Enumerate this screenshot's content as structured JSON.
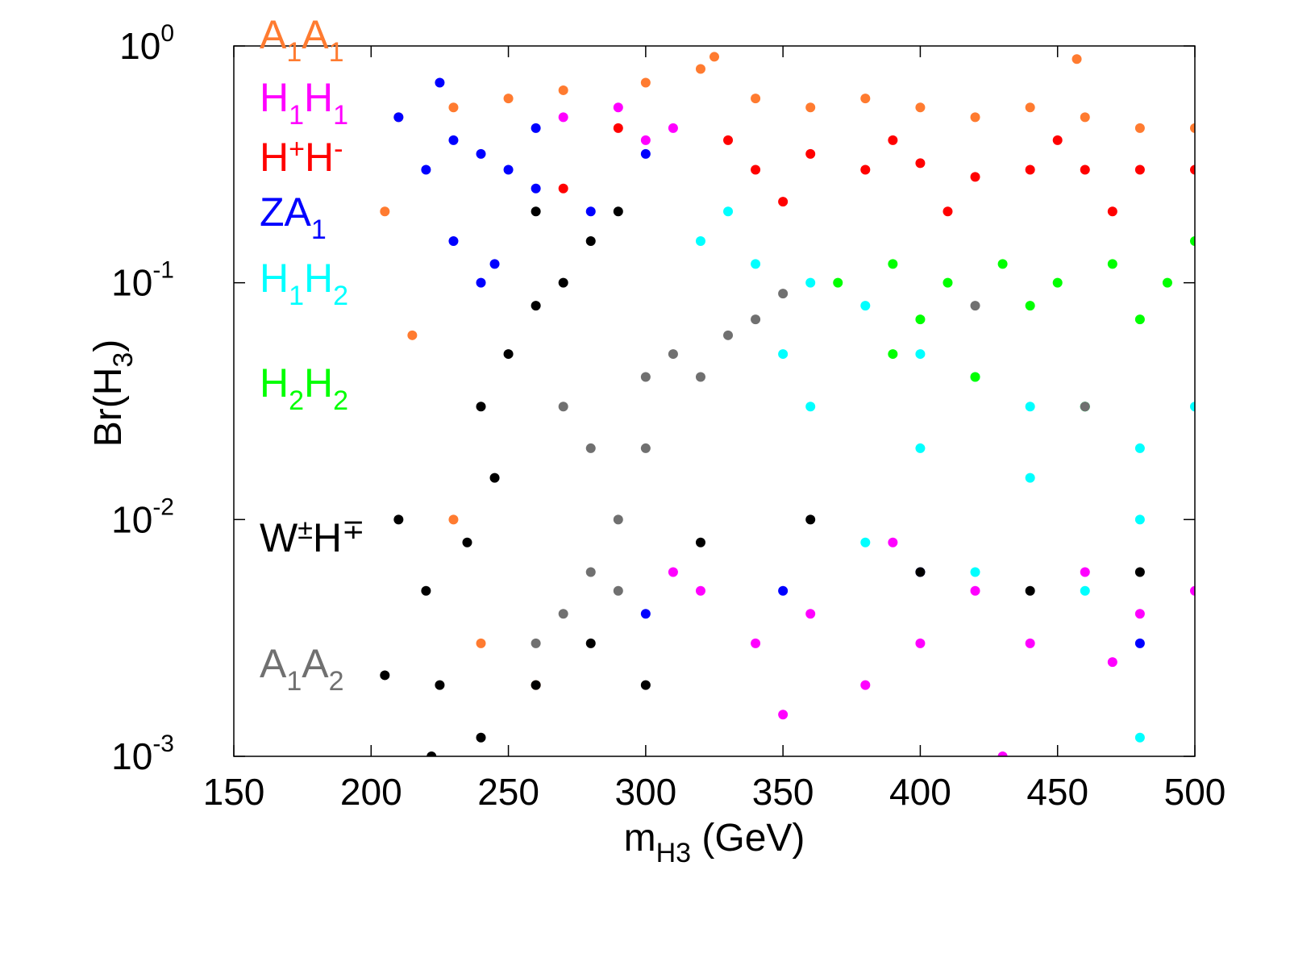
{
  "chart_data": {
    "type": "scatter",
    "y_log": true,
    "xlim": [
      150,
      500
    ],
    "ylim": [
      0.001,
      1
    ],
    "xticks": [
      150,
      200,
      250,
      300,
      350,
      400,
      450,
      500
    ],
    "yticks": [
      {
        "value": 0.001,
        "label": "10",
        "exponent": "-3"
      },
      {
        "value": 0.01,
        "label": "10",
        "exponent": "-2"
      },
      {
        "value": 0.1,
        "label": "10",
        "exponent": "-1"
      },
      {
        "value": 1,
        "label": "10",
        "exponent": "0"
      }
    ],
    "x_label": {
      "text": "m",
      "sub": "H3",
      "rest": " (GeV)"
    },
    "y_label": {
      "text": "Br(H",
      "sub": "3",
      "rest": ")"
    },
    "series": [
      {
        "name": "A1A1",
        "color": "#ff7b30",
        "x": [
          210,
          230,
          250,
          270,
          300,
          320,
          340,
          360,
          380,
          400,
          420,
          440,
          460,
          480,
          500,
          205,
          215,
          230,
          240,
          260,
          457,
          325
        ],
        "values": [
          0.5,
          0.55,
          0.6,
          0.65,
          0.7,
          0.8,
          0.6,
          0.55,
          0.6,
          0.55,
          0.5,
          0.55,
          0.5,
          0.45,
          0.45,
          0.2,
          0.06,
          0.01,
          0.003,
          0.002,
          0.88,
          0.9
        ]
      },
      {
        "name": "H1H1",
        "color": "#ff00ff",
        "x": [
          270,
          290,
          310,
          300,
          320,
          340,
          360,
          380,
          400,
          420,
          440,
          460,
          480,
          500,
          350,
          430,
          310,
          390,
          470
        ],
        "values": [
          0.5,
          0.55,
          0.45,
          0.4,
          0.005,
          0.003,
          0.004,
          0.002,
          0.003,
          0.005,
          0.003,
          0.006,
          0.004,
          0.005,
          0.0015,
          0.001,
          0.006,
          0.008,
          0.0025
        ]
      },
      {
        "name": "H+H-",
        "color": "#ff0000",
        "x": [
          340,
          360,
          380,
          400,
          420,
          440,
          460,
          480,
          500,
          350,
          410,
          470,
          330,
          290,
          270,
          390,
          450
        ],
        "values": [
          0.3,
          0.35,
          0.3,
          0.32,
          0.28,
          0.3,
          0.3,
          0.3,
          0.3,
          0.22,
          0.2,
          0.2,
          0.4,
          0.45,
          0.25,
          0.4,
          0.4
        ]
      },
      {
        "name": "ZA1",
        "color": "#0000ff",
        "x": [
          220,
          230,
          240,
          250,
          260,
          230,
          245,
          260,
          280,
          300,
          210,
          225,
          240,
          300,
          400,
          480,
          350
        ],
        "values": [
          0.3,
          0.4,
          0.35,
          0.3,
          0.25,
          0.15,
          0.12,
          0.45,
          0.2,
          0.35,
          0.5,
          0.7,
          0.1,
          0.004,
          0.006,
          0.003,
          0.005
        ]
      },
      {
        "name": "H1H2",
        "color": "#00ffff",
        "x": [
          320,
          340,
          360,
          380,
          400,
          420,
          440,
          460,
          480,
          500,
          360,
          400,
          440,
          480,
          380,
          420,
          460,
          350,
          330,
          480
        ],
        "values": [
          0.15,
          0.12,
          0.1,
          0.08,
          0.05,
          0.04,
          0.03,
          0.03,
          0.02,
          0.03,
          0.03,
          0.02,
          0.015,
          0.01,
          0.008,
          0.006,
          0.005,
          0.05,
          0.2,
          0.0012
        ]
      },
      {
        "name": "H2H2",
        "color": "#00ff00",
        "x": [
          370,
          390,
          410,
          430,
          450,
          470,
          490,
          500,
          400,
          440,
          480,
          420,
          460,
          390
        ],
        "values": [
          0.1,
          0.12,
          0.1,
          0.12,
          0.1,
          0.12,
          0.1,
          0.15,
          0.07,
          0.08,
          0.07,
          0.04,
          0.03,
          0.05
        ]
      },
      {
        "name": "W±H∓",
        "color": "#000000",
        "x": [
          240,
          250,
          260,
          270,
          280,
          290,
          260,
          245,
          235,
          220,
          210,
          225,
          240,
          260,
          280,
          300,
          320,
          360,
          400,
          440,
          480,
          205,
          222
        ],
        "values": [
          0.03,
          0.05,
          0.08,
          0.1,
          0.15,
          0.2,
          0.2,
          0.015,
          0.008,
          0.005,
          0.01,
          0.002,
          0.0012,
          0.002,
          0.003,
          0.002,
          0.008,
          0.01,
          0.006,
          0.005,
          0.006,
          0.0022,
          0.001
        ]
      },
      {
        "name": "A1A2",
        "color": "#707070",
        "x": [
          270,
          280,
          290,
          300,
          310,
          320,
          330,
          340,
          300,
          280,
          270,
          260,
          290,
          420,
          460,
          350
        ],
        "values": [
          0.03,
          0.02,
          0.01,
          0.04,
          0.05,
          0.04,
          0.06,
          0.07,
          0.02,
          0.006,
          0.004,
          0.003,
          0.005,
          0.08,
          0.03,
          0.09
        ]
      }
    ]
  }
}
